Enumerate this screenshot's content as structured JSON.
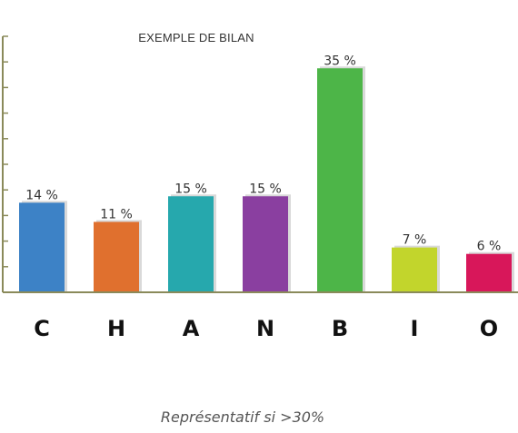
{
  "chart_data": {
    "type": "bar",
    "title": "EXEMPLE DE BILAN",
    "categories": [
      "C",
      "H",
      "A",
      "N",
      "B",
      "I",
      "O"
    ],
    "values": [
      14,
      11,
      15,
      15,
      35,
      7,
      6
    ],
    "value_labels": [
      "14 %",
      "11 %",
      "15 %",
      "15 %",
      "35 %",
      "7 %",
      "6 %"
    ],
    "colors": [
      "#3d82c6",
      "#e0702e",
      "#26a8ad",
      "#8a3fa0",
      "#4db548",
      "#c2d52c",
      "#d8175a"
    ],
    "ylim": [
      0,
      40
    ],
    "grid": false,
    "legend": "none",
    "xlabel": "",
    "ylabel": ""
  },
  "footnote": "Représentatif si >30%"
}
